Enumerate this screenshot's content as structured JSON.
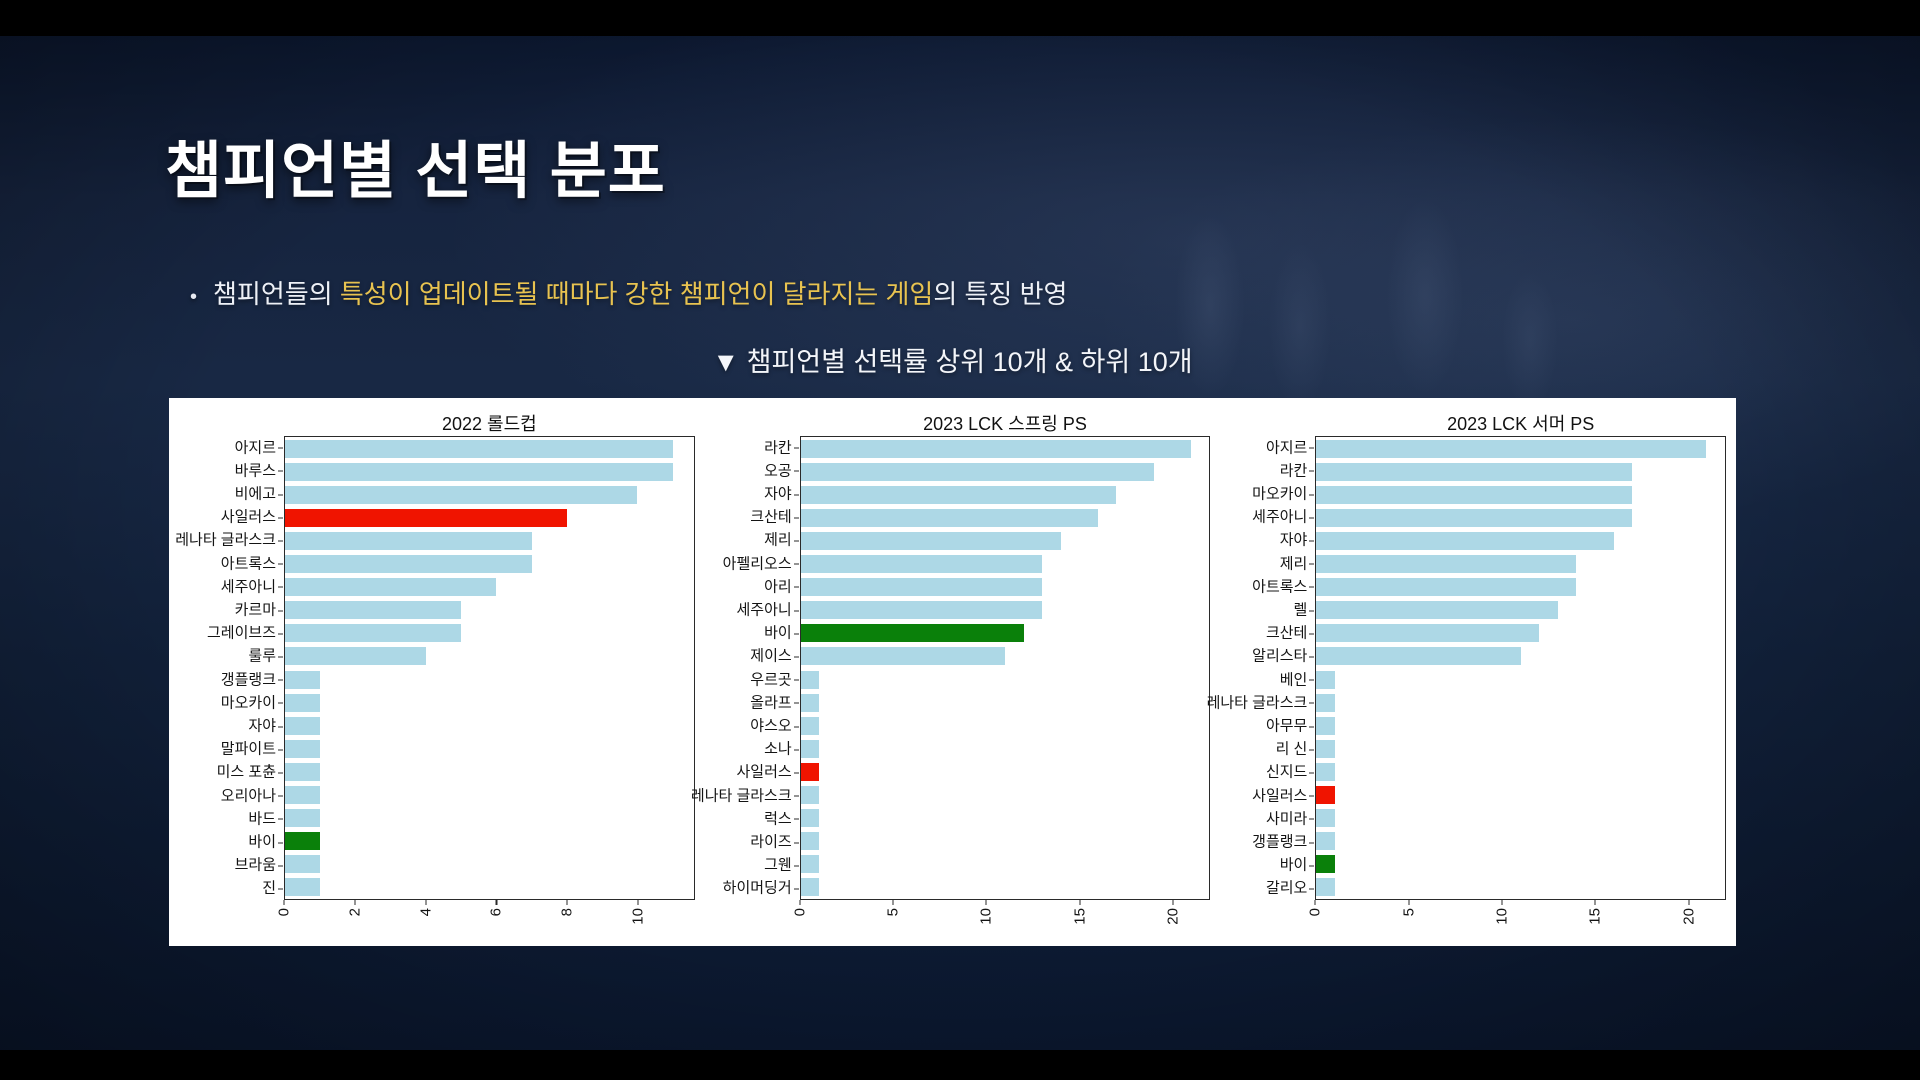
{
  "slide": {
    "title": "챔피언별 선택 분포",
    "bullet": {
      "marker": "•",
      "text_before": "챔피언들의 ",
      "text_highlight": "특성이 업데이트될 때마다 강한 챔피언이 달라지는 게임",
      "text_after": "의 특징 반영"
    },
    "chart_caption": "▼ 챔피언별 선택률 상위 10개 & 하위 10개"
  },
  "colors": {
    "background": "#14233e",
    "letterbox": "#000000",
    "panel": "#ffffff",
    "title_text": "#ffffff",
    "body_text": "#eef1f7",
    "highlight_text": "#e8c350",
    "axis_text": "#141414",
    "bar_palette": {
      "lightblue": "#add8e6",
      "red": "#f01400",
      "green": "#0a800a"
    }
  },
  "chart_data": [
    {
      "type": "bar",
      "orientation": "horizontal",
      "title": "2022 롤드컵",
      "categories": [
        "아지르",
        "바루스",
        "비에고",
        "사일러스",
        "레나타 글라스크",
        "아트록스",
        "세주아니",
        "카르마",
        "그레이브즈",
        "룰루",
        "갱플랭크",
        "마오카이",
        "자야",
        "말파이트",
        "미스 포츈",
        "오리아나",
        "바드",
        "바이",
        "브라움",
        "진"
      ],
      "values": [
        11,
        11,
        10,
        8,
        7,
        7,
        6,
        5,
        5,
        4,
        1,
        1,
        1,
        1,
        1,
        1,
        1,
        1,
        1,
        1
      ],
      "bar_colors": [
        "lightblue",
        "lightblue",
        "lightblue",
        "red",
        "lightblue",
        "lightblue",
        "lightblue",
        "lightblue",
        "lightblue",
        "lightblue",
        "lightblue",
        "lightblue",
        "lightblue",
        "lightblue",
        "lightblue",
        "lightblue",
        "lightblue",
        "green",
        "lightblue",
        "lightblue"
      ],
      "xticks": [
        0,
        2,
        4,
        6,
        8,
        10
      ],
      "xlim": [
        0,
        11.6
      ],
      "grid": false,
      "legend": null
    },
    {
      "type": "bar",
      "orientation": "horizontal",
      "title": "2023 LCK 스프링 PS",
      "categories": [
        "라칸",
        "오공",
        "자야",
        "크산테",
        "제리",
        "아펠리오스",
        "아리",
        "세주아니",
        "바이",
        "제이스",
        "우르곳",
        "올라프",
        "야스오",
        "소나",
        "사일러스",
        "레나타 글라스크",
        "럭스",
        "라이즈",
        "그웬",
        "하이머딩거"
      ],
      "values": [
        21,
        19,
        17,
        16,
        14,
        13,
        13,
        13,
        12,
        11,
        1,
        1,
        1,
        1,
        1,
        1,
        1,
        1,
        1,
        1
      ],
      "bar_colors": [
        "lightblue",
        "lightblue",
        "lightblue",
        "lightblue",
        "lightblue",
        "lightblue",
        "lightblue",
        "lightblue",
        "green",
        "lightblue",
        "lightblue",
        "lightblue",
        "lightblue",
        "lightblue",
        "red",
        "lightblue",
        "lightblue",
        "lightblue",
        "lightblue",
        "lightblue"
      ],
      "xticks": [
        0,
        5,
        10,
        15,
        20
      ],
      "xlim": [
        0,
        22
      ],
      "grid": false,
      "legend": null
    },
    {
      "type": "bar",
      "orientation": "horizontal",
      "title": "2023 LCK 서머 PS",
      "categories": [
        "아지르",
        "라칸",
        "마오카이",
        "세주아니",
        "자야",
        "제리",
        "아트록스",
        "렐",
        "크산테",
        "알리스타",
        "베인",
        "레나타 글라스크",
        "아무무",
        "리 신",
        "신지드",
        "사일러스",
        "사미라",
        "갱플랭크",
        "바이",
        "갈리오"
      ],
      "values": [
        21,
        17,
        17,
        17,
        16,
        14,
        14,
        13,
        12,
        11,
        1,
        1,
        1,
        1,
        1,
        1,
        1,
        1,
        1,
        1
      ],
      "bar_colors": [
        "lightblue",
        "lightblue",
        "lightblue",
        "lightblue",
        "lightblue",
        "lightblue",
        "lightblue",
        "lightblue",
        "lightblue",
        "lightblue",
        "lightblue",
        "lightblue",
        "lightblue",
        "lightblue",
        "lightblue",
        "red",
        "lightblue",
        "lightblue",
        "green",
        "lightblue"
      ],
      "xticks": [
        0,
        5,
        10,
        15,
        20
      ],
      "xlim": [
        0,
        22
      ],
      "grid": false,
      "legend": null
    }
  ]
}
